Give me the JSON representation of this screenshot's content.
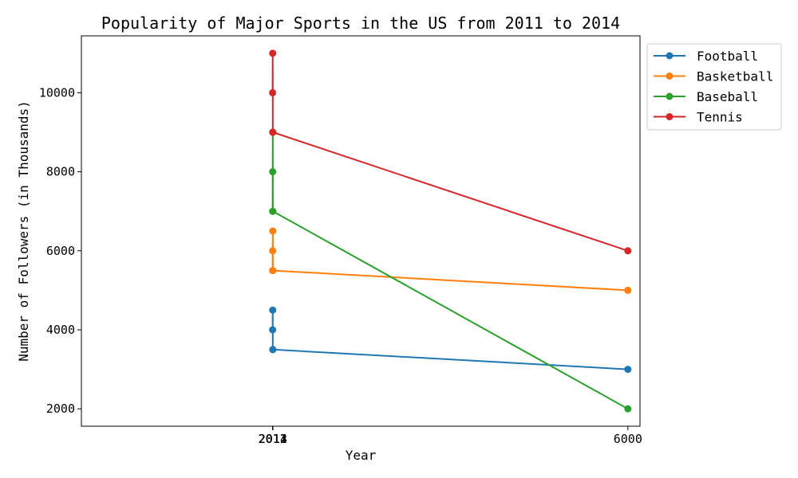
{
  "chart_data": {
    "type": "line",
    "title": "Popularity of Major Sports in the US from 2011 to 2014",
    "xlabel": "Year",
    "ylabel": "Number of Followers (in Thousands)",
    "xlim": [
      -136,
      6136
    ],
    "ylim": [
      1560,
      11440
    ],
    "x_ticks": [
      {
        "value": 2011,
        "label": "2011"
      },
      {
        "value": 2012,
        "label": "2012"
      },
      {
        "value": 2013,
        "label": "2013"
      },
      {
        "value": 2014,
        "label": "2014"
      },
      {
        "value": 6000,
        "label": "6000"
      }
    ],
    "y_ticks": [
      {
        "value": 2000,
        "label": "2000"
      },
      {
        "value": 4000,
        "label": "4000"
      },
      {
        "value": 6000,
        "label": "6000"
      },
      {
        "value": 8000,
        "label": "8000"
      },
      {
        "value": 10000,
        "label": "10000"
      }
    ],
    "legend_position": "outside-top-right",
    "series": [
      {
        "name": "Football",
        "color": "#1f77b4",
        "x": [
          2011,
          2012,
          2013,
          2014,
          6000
        ],
        "y": [
          4000,
          4500,
          3500,
          3500,
          3000
        ]
      },
      {
        "name": "Basketball",
        "color": "#ff7f0e",
        "x": [
          2011,
          2012,
          2013,
          2014,
          6000
        ],
        "y": [
          5500,
          6000,
          6500,
          5500,
          5000
        ]
      },
      {
        "name": "Baseball",
        "color": "#2ca02c",
        "x": [
          2011,
          2012,
          2013,
          2014,
          6000
        ],
        "y": [
          7000,
          8000,
          9000,
          7000,
          2000
        ]
      },
      {
        "name": "Tennis",
        "color": "#d62728",
        "x": [
          2011,
          2012,
          2013,
          2014,
          6000
        ],
        "y": [
          10000,
          11000,
          9000,
          9000,
          6000
        ]
      }
    ]
  }
}
